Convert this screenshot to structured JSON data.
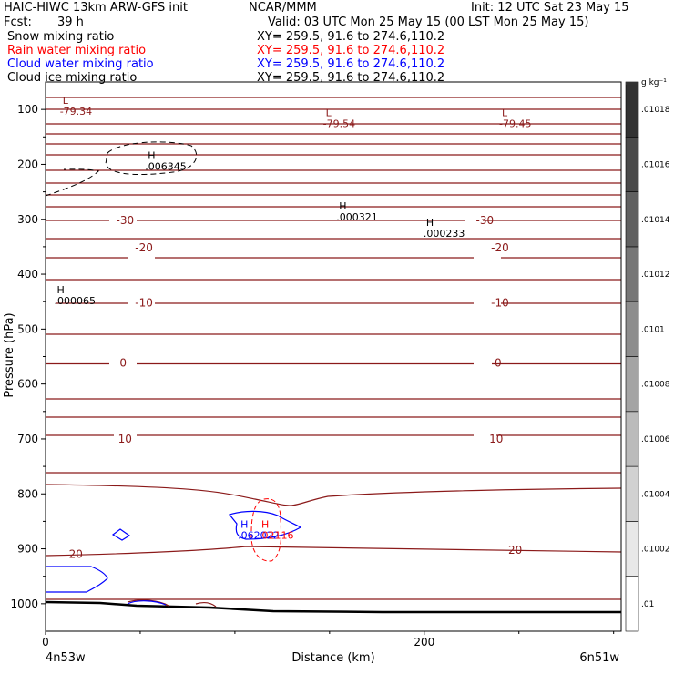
{
  "header": {
    "model_line": "HAIC-HIWC 13km ARW-GFS init",
    "org": "NCAR/MMM",
    "init": "Init: 12 UTC Sat 23 May 15",
    "fcst_label": "Fcst:",
    "fcst_value": "39 h",
    "valid": "Valid: 03 UTC Mon 25 May 15 (00 LST Mon 25 May 15)",
    "fields": [
      {
        "name": "Snow mixing ratio",
        "xy": "XY= 259.5, 91.6 to 274.6,110.2",
        "color": "#000000"
      },
      {
        "name": "Rain water mixing ratio",
        "xy": "XY= 259.5, 91.6 to 274.6,110.2",
        "color": "#ff0000"
      },
      {
        "name": "Cloud water mixing ratio",
        "xy": "XY= 259.5, 91.6 to 274.6,110.2",
        "color": "#0000ff"
      },
      {
        "name": "Cloud ice mixing ratio",
        "xy": "XY= 259.5, 91.6 to 274.6,110.2",
        "color": "#000000"
      }
    ]
  },
  "chart_data": {
    "type": "contour",
    "xlabel": "Distance (km)",
    "ylabel": "Pressure (hPa)",
    "xlim": [
      0,
      304
    ],
    "ylim": [
      1050,
      50
    ],
    "x_ticks": [
      0,
      200
    ],
    "y_ticks": [
      100,
      200,
      300,
      400,
      500,
      600,
      700,
      800,
      900,
      1000
    ],
    "x_endpoint_labels": {
      "left": "4n53w",
      "right": "6n51w"
    },
    "colorbar": {
      "unit": "g kg⁻¹",
      "labels": [
        ".01",
        ".01002",
        ".01004",
        ".01006",
        ".01008",
        ".0101",
        ".01012",
        ".01014",
        ".01016",
        ".01018"
      ]
    },
    "temperature_labels": [
      {
        "value": "-30",
        "x": 42,
        "p": 302,
        "color": "#8b1a1a"
      },
      {
        "value": "-30",
        "x": 232,
        "p": 302,
        "color": "#8b1a1a"
      },
      {
        "value": "-20",
        "x": 52,
        "p": 352,
        "color": "#8b1a1a"
      },
      {
        "value": "-20",
        "x": 240,
        "p": 352,
        "color": "#8b1a1a"
      },
      {
        "value": "-10",
        "x": 52,
        "p": 452,
        "color": "#8b1a1a"
      },
      {
        "value": "-10",
        "x": 240,
        "p": 452,
        "color": "#8b1a1a"
      },
      {
        "value": "0",
        "x": 41,
        "p": 562,
        "color": "#8b1a1a"
      },
      {
        "value": "0",
        "x": 239,
        "p": 562,
        "color": "#8b1a1a"
      },
      {
        "value": "10",
        "x": 42,
        "p": 700,
        "color": "#8b1a1a"
      },
      {
        "value": "10",
        "x": 238,
        "p": 700,
        "color": "#8b1a1a"
      },
      {
        "value": "20",
        "x": 16,
        "p": 910,
        "color": "#8b1a1a"
      },
      {
        "value": "20",
        "x": 248,
        "p": 902,
        "color": "#8b1a1a"
      }
    ],
    "extrema": [
      {
        "kind": "L",
        "value": "-79.34",
        "x": 9,
        "p": 90,
        "color": "#8b1a1a"
      },
      {
        "kind": "L",
        "value": "-79.54",
        "x": 148,
        "p": 112,
        "color": "#8b1a1a"
      },
      {
        "kind": "L",
        "value": "-79.45",
        "x": 241,
        "p": 112,
        "color": "#8b1a1a"
      },
      {
        "kind": "H",
        "value": ".006345",
        "x": 54,
        "p": 190,
        "color": "#000000"
      },
      {
        "kind": "H",
        "value": ".000321",
        "x": 155,
        "p": 282,
        "color": "#000000"
      },
      {
        "kind": "H",
        "value": ".000233",
        "x": 201,
        "p": 312,
        "color": "#000000"
      },
      {
        "kind": "H",
        "value": ".000065",
        "x": 6,
        "p": 435,
        "color": "#000000"
      },
      {
        "kind": "H",
        "value": ".062022",
        "x": 103,
        "p": 862,
        "color": "#0000ff"
      },
      {
        "kind": "H",
        "value": ".02116",
        "x": 114,
        "p": 862,
        "color": "#ff0000"
      }
    ]
  }
}
